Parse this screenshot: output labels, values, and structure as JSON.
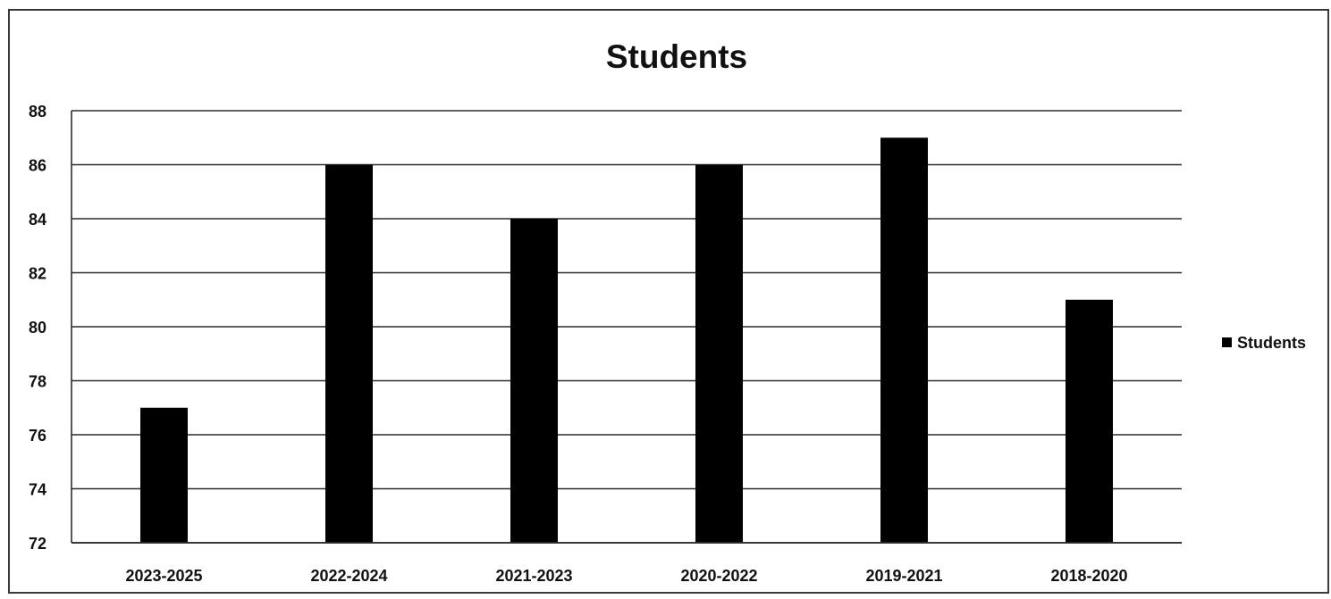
{
  "chart_data": {
    "type": "bar",
    "title": "Students",
    "xlabel": "",
    "ylabel": "",
    "categories": [
      "2023-2025",
      "2022-2024",
      "2021-2023",
      "2020-2022",
      "2019-2021",
      "2018-2020"
    ],
    "series": [
      {
        "name": "Students",
        "values": [
          77,
          86,
          84,
          86,
          87,
          81
        ],
        "color": "#000000"
      }
    ],
    "ylim": [
      72,
      88
    ],
    "yticks": [
      "72",
      "74",
      "76",
      "78",
      "80",
      "82",
      "84",
      "86",
      "88"
    ],
    "grid": true,
    "legend_position": "right"
  }
}
